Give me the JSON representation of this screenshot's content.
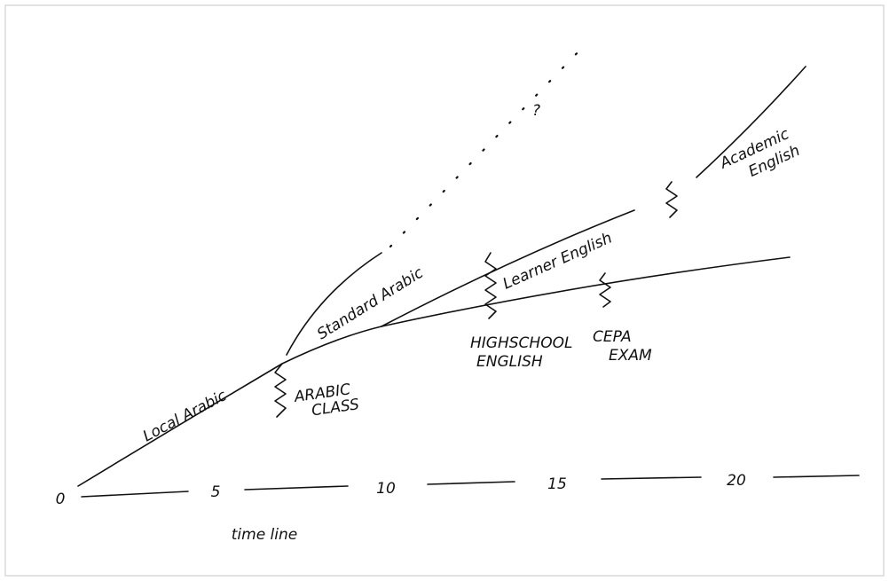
{
  "timeline": {
    "ticks": [
      0,
      5,
      10,
      15,
      20
    ],
    "caption": "time line"
  },
  "labels": {
    "local_arabic": "Local Arabic",
    "arabic_class": [
      "ARABIC",
      "CLASS"
    ],
    "standard_arabic": "Standard Arabic",
    "question": "?",
    "learner_english": "Learner English",
    "highschool_english": [
      "HIGHSCHOOL",
      "ENGLISH"
    ],
    "cepa_exam": [
      "CEPA",
      "EXAM"
    ],
    "academic_english": [
      "Academic",
      "English"
    ]
  }
}
